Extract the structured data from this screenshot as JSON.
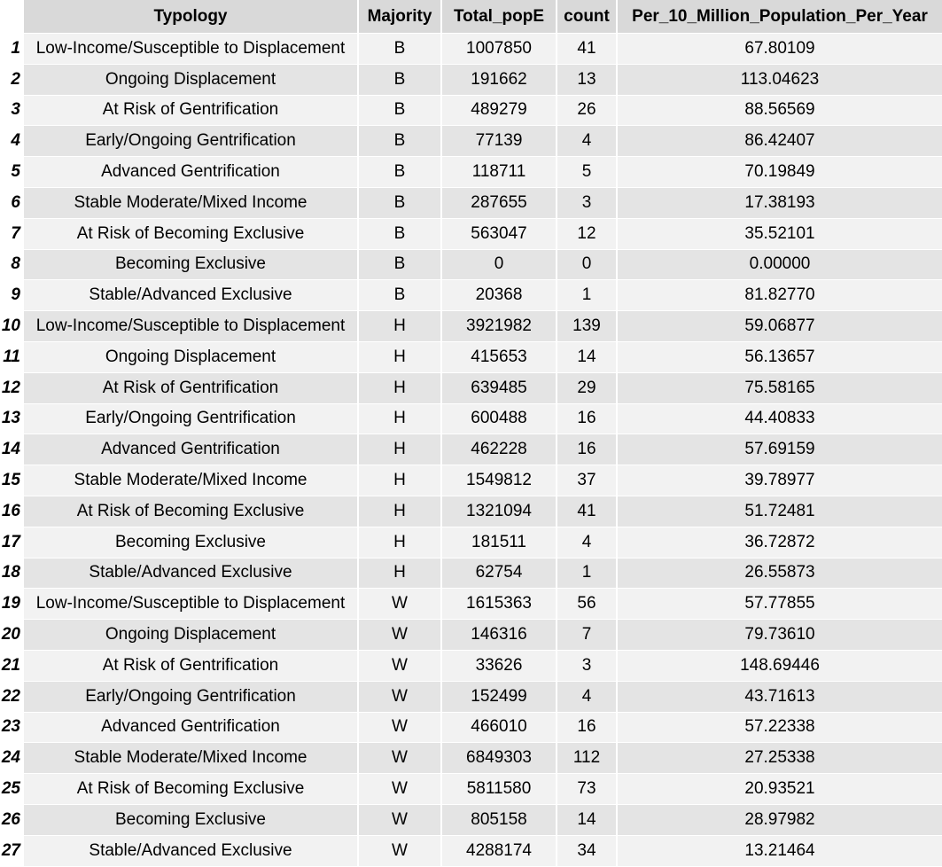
{
  "chart_data": {
    "type": "table",
    "columns": [
      "Typology",
      "Majority",
      "Total_popE",
      "count",
      "Per_10_Million_Population_Per_Year"
    ],
    "rows": [
      {
        "index": "1",
        "Typology": "Low-Income/Susceptible to Displacement",
        "Majority": "B",
        "Total_popE": "1007850",
        "count": "41",
        "Per": "67.80109"
      },
      {
        "index": "2",
        "Typology": "Ongoing Displacement",
        "Majority": "B",
        "Total_popE": "191662",
        "count": "13",
        "Per": "113.04623"
      },
      {
        "index": "3",
        "Typology": "At Risk of Gentrification",
        "Majority": "B",
        "Total_popE": "489279",
        "count": "26",
        "Per": "88.56569"
      },
      {
        "index": "4",
        "Typology": "Early/Ongoing Gentrification",
        "Majority": "B",
        "Total_popE": "77139",
        "count": "4",
        "Per": "86.42407"
      },
      {
        "index": "5",
        "Typology": "Advanced Gentrification",
        "Majority": "B",
        "Total_popE": "118711",
        "count": "5",
        "Per": "70.19849"
      },
      {
        "index": "6",
        "Typology": "Stable Moderate/Mixed Income",
        "Majority": "B",
        "Total_popE": "287655",
        "count": "3",
        "Per": "17.38193"
      },
      {
        "index": "7",
        "Typology": "At Risk of Becoming Exclusive",
        "Majority": "B",
        "Total_popE": "563047",
        "count": "12",
        "Per": "35.52101"
      },
      {
        "index": "8",
        "Typology": "Becoming Exclusive",
        "Majority": "B",
        "Total_popE": "0",
        "count": "0",
        "Per": "0.00000"
      },
      {
        "index": "9",
        "Typology": "Stable/Advanced Exclusive",
        "Majority": "B",
        "Total_popE": "20368",
        "count": "1",
        "Per": "81.82770"
      },
      {
        "index": "10",
        "Typology": "Low-Income/Susceptible to Displacement",
        "Majority": "H",
        "Total_popE": "3921982",
        "count": "139",
        "Per": "59.06877"
      },
      {
        "index": "11",
        "Typology": "Ongoing Displacement",
        "Majority": "H",
        "Total_popE": "415653",
        "count": "14",
        "Per": "56.13657"
      },
      {
        "index": "12",
        "Typology": "At Risk of Gentrification",
        "Majority": "H",
        "Total_popE": "639485",
        "count": "29",
        "Per": "75.58165"
      },
      {
        "index": "13",
        "Typology": "Early/Ongoing Gentrification",
        "Majority": "H",
        "Total_popE": "600488",
        "count": "16",
        "Per": "44.40833"
      },
      {
        "index": "14",
        "Typology": "Advanced Gentrification",
        "Majority": "H",
        "Total_popE": "462228",
        "count": "16",
        "Per": "57.69159"
      },
      {
        "index": "15",
        "Typology": "Stable Moderate/Mixed Income",
        "Majority": "H",
        "Total_popE": "1549812",
        "count": "37",
        "Per": "39.78977"
      },
      {
        "index": "16",
        "Typology": "At Risk of Becoming Exclusive",
        "Majority": "H",
        "Total_popE": "1321094",
        "count": "41",
        "Per": "51.72481"
      },
      {
        "index": "17",
        "Typology": "Becoming Exclusive",
        "Majority": "H",
        "Total_popE": "181511",
        "count": "4",
        "Per": "36.72872"
      },
      {
        "index": "18",
        "Typology": "Stable/Advanced Exclusive",
        "Majority": "H",
        "Total_popE": "62754",
        "count": "1",
        "Per": "26.55873"
      },
      {
        "index": "19",
        "Typology": "Low-Income/Susceptible to Displacement",
        "Majority": "W",
        "Total_popE": "1615363",
        "count": "56",
        "Per": "57.77855"
      },
      {
        "index": "20",
        "Typology": "Ongoing Displacement",
        "Majority": "W",
        "Total_popE": "146316",
        "count": "7",
        "Per": "79.73610"
      },
      {
        "index": "21",
        "Typology": "At Risk of Gentrification",
        "Majority": "W",
        "Total_popE": "33626",
        "count": "3",
        "Per": "148.69446"
      },
      {
        "index": "22",
        "Typology": "Early/Ongoing Gentrification",
        "Majority": "W",
        "Total_popE": "152499",
        "count": "4",
        "Per": "43.71613"
      },
      {
        "index": "23",
        "Typology": "Advanced Gentrification",
        "Majority": "W",
        "Total_popE": "466010",
        "count": "16",
        "Per": "57.22338"
      },
      {
        "index": "24",
        "Typology": "Stable Moderate/Mixed Income",
        "Majority": "W",
        "Total_popE": "6849303",
        "count": "112",
        "Per": "27.25338"
      },
      {
        "index": "25",
        "Typology": "At Risk of Becoming Exclusive",
        "Majority": "W",
        "Total_popE": "5811580",
        "count": "73",
        "Per": "20.93521"
      },
      {
        "index": "26",
        "Typology": "Becoming Exclusive",
        "Majority": "W",
        "Total_popE": "805158",
        "count": "14",
        "Per": "28.97982"
      },
      {
        "index": "27",
        "Typology": "Stable/Advanced Exclusive",
        "Majority": "W",
        "Total_popE": "4288174",
        "count": "34",
        "Per": "13.21464"
      }
    ]
  },
  "colors": {
    "header_bg": "#d9d9d9",
    "row_light": "#f2f2f2",
    "row_dark": "#e4e4e4",
    "index_bg": "#ffffff"
  }
}
